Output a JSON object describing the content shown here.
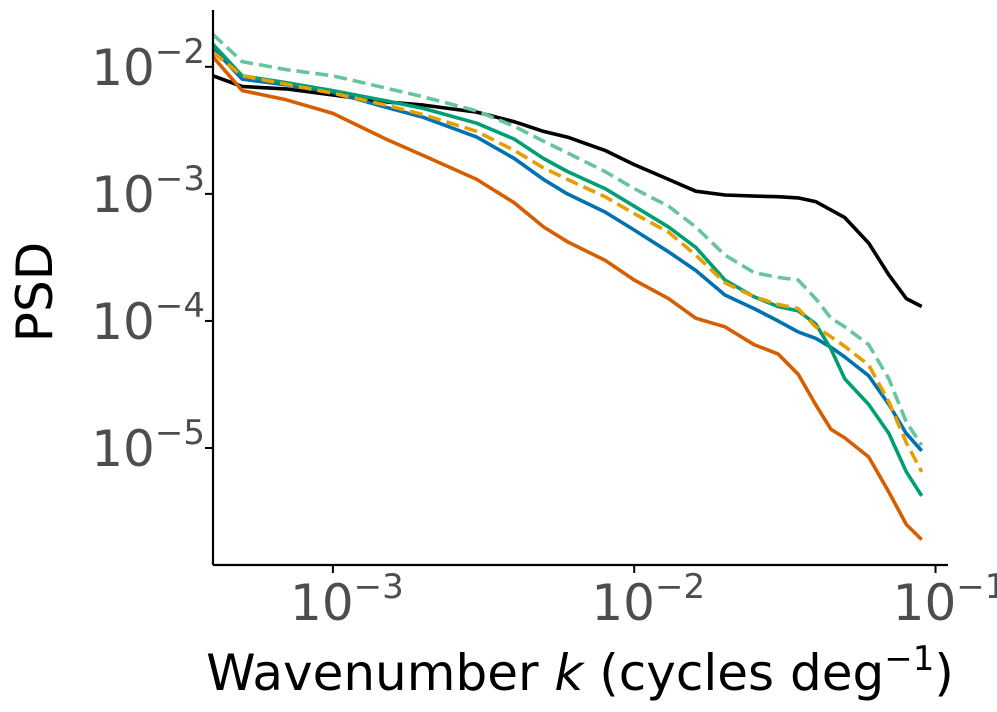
{
  "chart_data": {
    "type": "line",
    "xscale": "log",
    "yscale": "log",
    "title": "",
    "xlabel_main": "Wavenumber ",
    "xlabel_var": "k",
    "xlabel_unit_open": " (cycles deg",
    "xlabel_unit_exp": "−1",
    "xlabel_unit_close": ")",
    "ylabel": "PSD",
    "xlim": [
      0.0004,
      0.11
    ],
    "ylim": [
      1.2e-06,
      0.028
    ],
    "x_ticks": [
      {
        "value": 0.001,
        "base": "10",
        "exp": "−3"
      },
      {
        "value": 0.01,
        "base": "10",
        "exp": "−2"
      },
      {
        "value": 0.1,
        "base": "10",
        "exp": "−1"
      }
    ],
    "y_ticks": [
      {
        "value": 0.01,
        "base": "10",
        "exp": "−2"
      },
      {
        "value": 0.001,
        "base": "10",
        "exp": "−3"
      },
      {
        "value": 0.0001,
        "base": "10",
        "exp": "−4"
      },
      {
        "value": 1e-05,
        "base": "10",
        "exp": "−5"
      }
    ],
    "grid": false,
    "legend": "none",
    "series": [
      {
        "name": "black-solid",
        "color": "#000000",
        "dash": "solid",
        "x": [
          0.0004,
          0.0005,
          0.0007,
          0.001,
          0.0015,
          0.002,
          0.003,
          0.004,
          0.005,
          0.006,
          0.008,
          0.01,
          0.013,
          0.016,
          0.02,
          0.025,
          0.03,
          0.035,
          0.04,
          0.05,
          0.06,
          0.07,
          0.08,
          0.09
        ],
        "y": [
          0.0085,
          0.007,
          0.0067,
          0.006,
          0.0053,
          0.005,
          0.0044,
          0.0037,
          0.0031,
          0.0028,
          0.0022,
          0.0017,
          0.0013,
          0.00105,
          0.00098,
          0.00096,
          0.00095,
          0.00093,
          0.00087,
          0.00065,
          0.00041,
          0.00023,
          0.00015,
          0.00013
        ]
      },
      {
        "name": "orange-solid",
        "color": "#d55e00",
        "dash": "solid",
        "x": [
          0.0004,
          0.0005,
          0.0007,
          0.001,
          0.0015,
          0.002,
          0.003,
          0.004,
          0.005,
          0.006,
          0.008,
          0.01,
          0.013,
          0.016,
          0.02,
          0.025,
          0.03,
          0.035,
          0.04,
          0.045,
          0.05,
          0.06,
          0.07,
          0.08,
          0.09
        ],
        "y": [
          0.012,
          0.0065,
          0.0055,
          0.0043,
          0.0027,
          0.002,
          0.0013,
          0.00085,
          0.00055,
          0.00042,
          0.0003,
          0.00021,
          0.00015,
          0.000105,
          9e-05,
          6.5e-05,
          5.5e-05,
          3.8e-05,
          2.2e-05,
          1.4e-05,
          1.2e-05,
          8.5e-06,
          4.5e-06,
          2.5e-06,
          1.9e-06
        ]
      },
      {
        "name": "blue-solid",
        "color": "#0072b2",
        "dash": "solid",
        "x": [
          0.0004,
          0.0005,
          0.0007,
          0.001,
          0.0015,
          0.002,
          0.003,
          0.004,
          0.005,
          0.006,
          0.008,
          0.01,
          0.013,
          0.016,
          0.02,
          0.025,
          0.03,
          0.035,
          0.04,
          0.045,
          0.05,
          0.06,
          0.07,
          0.08,
          0.09
        ],
        "y": [
          0.014,
          0.008,
          0.0072,
          0.0063,
          0.0048,
          0.004,
          0.0028,
          0.0019,
          0.0013,
          0.001,
          0.00072,
          0.00052,
          0.00035,
          0.00025,
          0.00016,
          0.000125,
          0.0001,
          8.2e-05,
          7.3e-05,
          6.2e-05,
          5.2e-05,
          3.7e-05,
          2.2e-05,
          1.3e-05,
          9.5e-06
        ]
      },
      {
        "name": "green-solid",
        "color": "#009e73",
        "dash": "solid",
        "x": [
          0.0004,
          0.0005,
          0.0007,
          0.001,
          0.0015,
          0.002,
          0.003,
          0.004,
          0.005,
          0.006,
          0.008,
          0.01,
          0.013,
          0.016,
          0.02,
          0.025,
          0.03,
          0.035,
          0.04,
          0.045,
          0.05,
          0.06,
          0.07,
          0.08,
          0.09
        ],
        "y": [
          0.015,
          0.0085,
          0.0075,
          0.0065,
          0.0054,
          0.0047,
          0.0036,
          0.0027,
          0.0019,
          0.0015,
          0.0011,
          0.0008,
          0.00055,
          0.00038,
          0.00021,
          0.000155,
          0.00013,
          0.00012,
          9.5e-05,
          6e-05,
          3.5e-05,
          2.2e-05,
          1.3e-05,
          6.5e-06,
          4.2e-06
        ]
      },
      {
        "name": "yellow-dashed",
        "color": "#e69f00",
        "dash": "dashed",
        "x": [
          0.0004,
          0.0005,
          0.0007,
          0.001,
          0.0015,
          0.002,
          0.003,
          0.004,
          0.005,
          0.006,
          0.008,
          0.01,
          0.013,
          0.016,
          0.02,
          0.025,
          0.03,
          0.035,
          0.04,
          0.045,
          0.05,
          0.06,
          0.07,
          0.08,
          0.09
        ],
        "y": [
          0.013,
          0.0085,
          0.0073,
          0.0062,
          0.005,
          0.0042,
          0.0031,
          0.0022,
          0.0016,
          0.0013,
          0.00095,
          0.0007,
          0.0005,
          0.00033,
          0.0002,
          0.000155,
          0.000135,
          0.000125,
          9e-05,
          7.5e-05,
          6.3e-05,
          4.5e-05,
          2.3e-05,
          1.1e-05,
          6.5e-06
        ]
      },
      {
        "name": "lightgreen-dashed",
        "color": "#66c59c",
        "dash": "dashed",
        "x": [
          0.0004,
          0.0005,
          0.0007,
          0.001,
          0.0015,
          0.002,
          0.003,
          0.004,
          0.005,
          0.006,
          0.008,
          0.01,
          0.013,
          0.016,
          0.02,
          0.025,
          0.03,
          0.035,
          0.04,
          0.045,
          0.05,
          0.06,
          0.07,
          0.08,
          0.09
        ],
        "y": [
          0.018,
          0.011,
          0.0095,
          0.0085,
          0.0068,
          0.0058,
          0.0045,
          0.0034,
          0.0026,
          0.0021,
          0.0015,
          0.0011,
          0.0008,
          0.00055,
          0.00033,
          0.00024,
          0.00022,
          0.00021,
          0.00015,
          0.000105,
          9e-05,
          6.5e-05,
          3.5e-05,
          1.6e-05,
          1.05e-05
        ]
      }
    ]
  }
}
